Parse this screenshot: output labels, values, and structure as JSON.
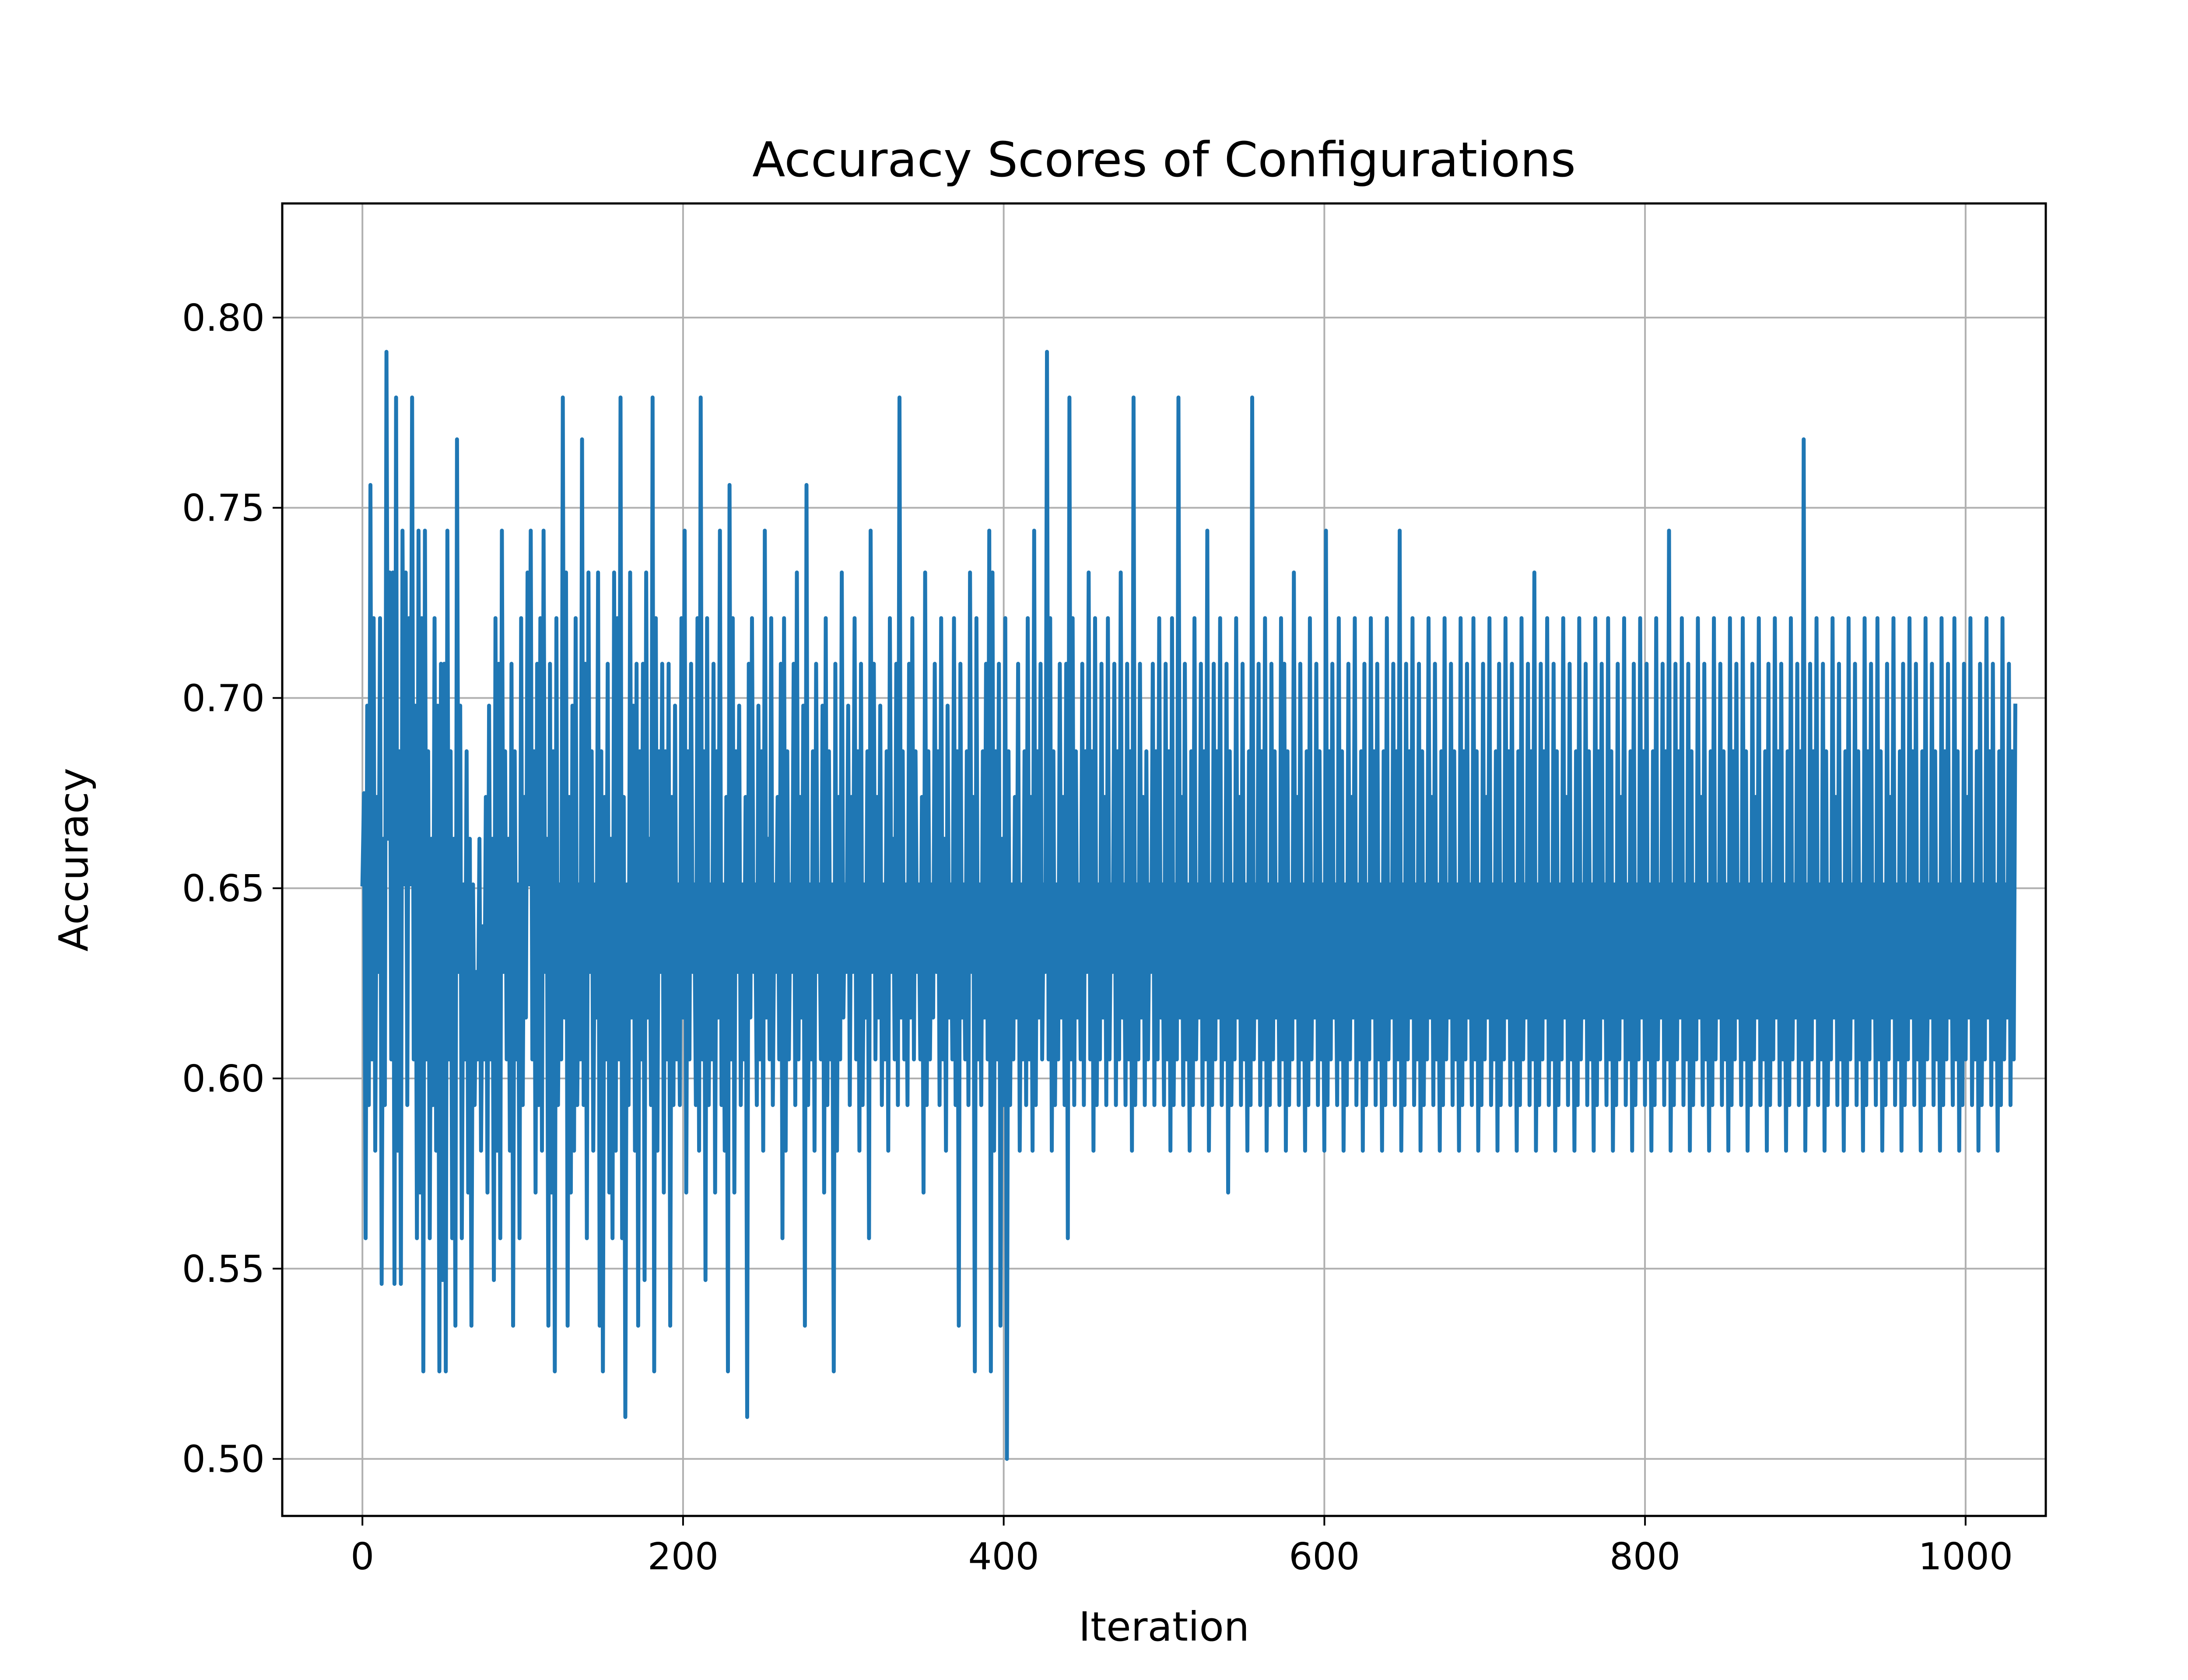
{
  "chart_data": {
    "type": "line",
    "title": "Accuracy Scores of Configurations",
    "xlabel": "Iteration",
    "ylabel": "Accuracy",
    "xlim": [
      -50,
      1050
    ],
    "ylim": [
      0.485,
      0.83
    ],
    "xticks": [
      0,
      200,
      400,
      600,
      800,
      1000
    ],
    "xtick_labels": [
      "0",
      "200",
      "400",
      "600",
      "800",
      "1000"
    ],
    "yticks": [
      0.5,
      0.55,
      0.6,
      0.65,
      0.7,
      0.75,
      0.8
    ],
    "ytick_labels": [
      "0.50",
      "0.55",
      "0.60",
      "0.65",
      "0.70",
      "0.75",
      "0.80"
    ],
    "grid": true,
    "legend": "none",
    "series": [
      {
        "color": "#1f77b4",
        "values_start_x": 0,
        "values_step_x": 1,
        "values": [
          0.651,
          0.675,
          0.558,
          0.698,
          0.593,
          0.756,
          0.605,
          0.721,
          0.581,
          0.674,
          0.628,
          0.721,
          0.546,
          0.663,
          0.593,
          0.791,
          0.663,
          0.733,
          0.605,
          0.733,
          0.546,
          0.779,
          0.581,
          0.686,
          0.546,
          0.744,
          0.651,
          0.733,
          0.593,
          0.721,
          0.651,
          0.779,
          0.605,
          0.698,
          0.558,
          0.744,
          0.57,
          0.721,
          0.523,
          0.744,
          0.605,
          0.686,
          0.558,
          0.663,
          0.593,
          0.721,
          0.581,
          0.698,
          0.523,
          0.709,
          0.547,
          0.709,
          0.523,
          0.744,
          0.605,
          0.686,
          0.558,
          0.663,
          0.535,
          0.768,
          0.628,
          0.698,
          0.558,
          0.651,
          0.605,
          0.686,
          0.57,
          0.663,
          0.535,
          0.651,
          0.593,
          0.628,
          0.605,
          0.663,
          0.581,
          0.64,
          0.605,
          0.674,
          0.57,
          0.698,
          0.605,
          0.663,
          0.547,
          0.721,
          0.581,
          0.709,
          0.558,
          0.744,
          0.628,
          0.686,
          0.605,
          0.663,
          0.581,
          0.709,
          0.535,
          0.686,
          0.605,
          0.651,
          0.558,
          0.721,
          0.593,
          0.674,
          0.616,
          0.733,
          0.651,
          0.744,
          0.605,
          0.686,
          0.57,
          0.709,
          0.593,
          0.721,
          0.581,
          0.744,
          0.628,
          0.663,
          0.535,
          0.709,
          0.57,
          0.686,
          0.523,
          0.721,
          0.593,
          0.651,
          0.605,
          0.779,
          0.616,
          0.733,
          0.535,
          0.674,
          0.57,
          0.698,
          0.581,
          0.721,
          0.593,
          0.651,
          0.605,
          0.768,
          0.593,
          0.709,
          0.558,
          0.733,
          0.628,
          0.686,
          0.581,
          0.651,
          0.616,
          0.733,
          0.535,
          0.686,
          0.523,
          0.674,
          0.605,
          0.709,
          0.57,
          0.663,
          0.558,
          0.733,
          0.581,
          0.721,
          0.605,
          0.779,
          0.558,
          0.674,
          0.511,
          0.651,
          0.593,
          0.733,
          0.616,
          0.698,
          0.581,
          0.709,
          0.535,
          0.686,
          0.605,
          0.709,
          0.547,
          0.733,
          0.616,
          0.663,
          0.593,
          0.779,
          0.523,
          0.721,
          0.581,
          0.686,
          0.628,
          0.709,
          0.57,
          0.686,
          0.605,
          0.709,
          0.535,
          0.674,
          0.593,
          0.698,
          0.605,
          0.651,
          0.593,
          0.721,
          0.616,
          0.744,
          0.57,
          0.686,
          0.605,
          0.709,
          0.628,
          0.651,
          0.593,
          0.721,
          0.581,
          0.779,
          0.605,
          0.686,
          0.547,
          0.721,
          0.593,
          0.651,
          0.605,
          0.709,
          0.57,
          0.686,
          0.616,
          0.744,
          0.593,
          0.651,
          0.581,
          0.674,
          0.523,
          0.756,
          0.605,
          0.721,
          0.57,
          0.686,
          0.628,
          0.698,
          0.593,
          0.651,
          0.605,
          0.674,
          0.511,
          0.709,
          0.616,
          0.721,
          0.628,
          0.651,
          0.593,
          0.698,
          0.605,
          0.686,
          0.581,
          0.744,
          0.616,
          0.663,
          0.605,
          0.721,
          0.593,
          0.651,
          0.628,
          0.674,
          0.605,
          0.709,
          0.558,
          0.721,
          0.581,
          0.686,
          0.605,
          0.651,
          0.628,
          0.709,
          0.593,
          0.733,
          0.605,
          0.674,
          0.616,
          0.698,
          0.535,
          0.756,
          0.593,
          0.651,
          0.605,
          0.686,
          0.581,
          0.709,
          0.628,
          0.651,
          0.605,
          0.698,
          0.57,
          0.721,
          0.593,
          0.686,
          0.605,
          0.651,
          0.523,
          0.709,
          0.581,
          0.674,
          0.605,
          0.733,
          0.616,
          0.651,
          0.628,
          0.698,
          0.593,
          0.674,
          0.628,
          0.721,
          0.605,
          0.686,
          0.581,
          0.709,
          0.593,
          0.651,
          0.616,
          0.686,
          0.558,
          0.744,
          0.628,
          0.709,
          0.605,
          0.674,
          0.616,
          0.698,
          0.593,
          0.651,
          0.605,
          0.686,
          0.581,
          0.721,
          0.628,
          0.663,
          0.605,
          0.709,
          0.593,
          0.779,
          0.616,
          0.686,
          0.605,
          0.651,
          0.593,
          0.709,
          0.616,
          0.721,
          0.605,
          0.686,
          0.628,
          0.651,
          0.605,
          0.674,
          0.57,
          0.733,
          0.593,
          0.686,
          0.605,
          0.651,
          0.616,
          0.709,
          0.628,
          0.686,
          0.593,
          0.721,
          0.605,
          0.663,
          0.581,
          0.698,
          0.616,
          0.651,
          0.605,
          0.721,
          0.593,
          0.686,
          0.535,
          0.709,
          0.616,
          0.651,
          0.605,
          0.686,
          0.593,
          0.733,
          0.628,
          0.674,
          0.523,
          0.721,
          0.605,
          0.651,
          0.593,
          0.686,
          0.616,
          0.709,
          0.605,
          0.744,
          0.523,
          0.733,
          0.581,
          0.686,
          0.605,
          0.709,
          0.535,
          0.663,
          0.593,
          0.721,
          0.5,
          0.686,
          0.593,
          0.651,
          0.605,
          0.674,
          0.616,
          0.709,
          0.581,
          0.651,
          0.605,
          0.686,
          0.593,
          0.721,
          0.605,
          0.674,
          0.581,
          0.744,
          0.593,
          0.686,
          0.616,
          0.709,
          0.605,
          0.651,
          0.628,
          0.791,
          0.605,
          0.721,
          0.581,
          0.686,
          0.593,
          0.651,
          0.605,
          0.709,
          0.616,
          0.674,
          0.593,
          0.709,
          0.558,
          0.779,
          0.605,
          0.721,
          0.593,
          0.686,
          0.616,
          0.651,
          0.605,
          0.709,
          0.593,
          0.686,
          0.628,
          0.733,
          0.605,
          0.686,
          0.581,
          0.721,
          0.593,
          0.651,
          0.605,
          0.709,
          0.616,
          0.674,
          0.593,
          0.721,
          0.605,
          0.651,
          0.628,
          0.709,
          0.593,
          0.686,
          0.605,
          0.733,
          0.616,
          0.651,
          0.593,
          0.709,
          0.605,
          0.686,
          0.581,
          0.779,
          0.593,
          0.651,
          0.605,
          0.709,
          0.616,
          0.674,
          0.593,
          0.686,
          0.605,
          0.651,
          0.628,
          0.709,
          0.593,
          0.686,
          0.605,
          0.721,
          0.616,
          0.651,
          0.593,
          0.709,
          0.605,
          0.686,
          0.581,
          0.721,
          0.593,
          0.651,
          0.605,
          0.779,
          0.616,
          0.674,
          0.593,
          0.709,
          0.605,
          0.651,
          0.581,
          0.686,
          0.593,
          0.721,
          0.605,
          0.651,
          0.616,
          0.709,
          0.593,
          0.686,
          0.605,
          0.744,
          0.581,
          0.651,
          0.593,
          0.709,
          0.605,
          0.686,
          0.616,
          0.721,
          0.593,
          0.651,
          0.605,
          0.709,
          0.57,
          0.686,
          0.593,
          0.651,
          0.605,
          0.721,
          0.616,
          0.674,
          0.593,
          0.709,
          0.605,
          0.651,
          0.581,
          0.686,
          0.593,
          0.779,
          0.605,
          0.651,
          0.616,
          0.709,
          0.593,
          0.686,
          0.605,
          0.721,
          0.581,
          0.651,
          0.593,
          0.709,
          0.605,
          0.686,
          0.616,
          0.651,
          0.593,
          0.721,
          0.605,
          0.709,
          0.581,
          0.686,
          0.593,
          0.651,
          0.605,
          0.733,
          0.616,
          0.674,
          0.593,
          0.709,
          0.605,
          0.651,
          0.581,
          0.686,
          0.593,
          0.721,
          0.605,
          0.651,
          0.616,
          0.709,
          0.593,
          0.686,
          0.605,
          0.651,
          0.581,
          0.744,
          0.593,
          0.686,
          0.605,
          0.709,
          0.616,
          0.651,
          0.593,
          0.721,
          0.605,
          0.686,
          0.581,
          0.651,
          0.593,
          0.709,
          0.605,
          0.674,
          0.616,
          0.721,
          0.593,
          0.651,
          0.605,
          0.686,
          0.581,
          0.709,
          0.593,
          0.651,
          0.605,
          0.721,
          0.616,
          0.686,
          0.593,
          0.709,
          0.605,
          0.651,
          0.581,
          0.686,
          0.593,
          0.721,
          0.605,
          0.651,
          0.616,
          0.709,
          0.593,
          0.686,
          0.605,
          0.744,
          0.581,
          0.651,
          0.593,
          0.709,
          0.605,
          0.686,
          0.616,
          0.721,
          0.593,
          0.651,
          0.605,
          0.709,
          0.581,
          0.686,
          0.593,
          0.651,
          0.605,
          0.721,
          0.616,
          0.674,
          0.593,
          0.709,
          0.605,
          0.651,
          0.581,
          0.686,
          0.593,
          0.721,
          0.605,
          0.651,
          0.616,
          0.709,
          0.593,
          0.686,
          0.605,
          0.651,
          0.581,
          0.721,
          0.593,
          0.686,
          0.605,
          0.709,
          0.616,
          0.651,
          0.593,
          0.721,
          0.605,
          0.686,
          0.581,
          0.651,
          0.593,
          0.709,
          0.605,
          0.674,
          0.616,
          0.721,
          0.593,
          0.651,
          0.605,
          0.686,
          0.581,
          0.709,
          0.593,
          0.651,
          0.605,
          0.721,
          0.616,
          0.686,
          0.593,
          0.709,
          0.605,
          0.651,
          0.581,
          0.686,
          0.593,
          0.721,
          0.605,
          0.651,
          0.616,
          0.709,
          0.593,
          0.686,
          0.605,
          0.733,
          0.581,
          0.651,
          0.593,
          0.709,
          0.605,
          0.686,
          0.616,
          0.721,
          0.593,
          0.651,
          0.605,
          0.709,
          0.581,
          0.686,
          0.593,
          0.651,
          0.605,
          0.721,
          0.616,
          0.674,
          0.593,
          0.709,
          0.605,
          0.651,
          0.581,
          0.686,
          0.593,
          0.721,
          0.605,
          0.651,
          0.616,
          0.709,
          0.593,
          0.686,
          0.605,
          0.651,
          0.581,
          0.721,
          0.593,
          0.686,
          0.605,
          0.709,
          0.616,
          0.651,
          0.593,
          0.721,
          0.605,
          0.686,
          0.581,
          0.651,
          0.593,
          0.709,
          0.605,
          0.674,
          0.616,
          0.721,
          0.593,
          0.651,
          0.605,
          0.686,
          0.581,
          0.709,
          0.593,
          0.651,
          0.605,
          0.721,
          0.616,
          0.686,
          0.593,
          0.709,
          0.605,
          0.651,
          0.581,
          0.686,
          0.593,
          0.721,
          0.605,
          0.651,
          0.616,
          0.709,
          0.593,
          0.686,
          0.605,
          0.744,
          0.581,
          0.651,
          0.593,
          0.709,
          0.605,
          0.686,
          0.616,
          0.721,
          0.593,
          0.651,
          0.605,
          0.709,
          0.581,
          0.686,
          0.593,
          0.651,
          0.605,
          0.721,
          0.616,
          0.674,
          0.593,
          0.709,
          0.605,
          0.651,
          0.581,
          0.686,
          0.593,
          0.721,
          0.605,
          0.651,
          0.616,
          0.709,
          0.593,
          0.686,
          0.605,
          0.651,
          0.581,
          0.721,
          0.593,
          0.686,
          0.605,
          0.709,
          0.616,
          0.651,
          0.593,
          0.721,
          0.605,
          0.686,
          0.581,
          0.651,
          0.593,
          0.709,
          0.605,
          0.674,
          0.616,
          0.721,
          0.593,
          0.651,
          0.605,
          0.686,
          0.581,
          0.709,
          0.593,
          0.651,
          0.605,
          0.721,
          0.616,
          0.686,
          0.593,
          0.709,
          0.605,
          0.651,
          0.581,
          0.686,
          0.593,
          0.721,
          0.605,
          0.651,
          0.616,
          0.709,
          0.593,
          0.686,
          0.605,
          0.768,
          0.581,
          0.651,
          0.593,
          0.709,
          0.605,
          0.686,
          0.616,
          0.721,
          0.593,
          0.651,
          0.605,
          0.709,
          0.581,
          0.686,
          0.593,
          0.651,
          0.605,
          0.721,
          0.616,
          0.674,
          0.593,
          0.709,
          0.605,
          0.651,
          0.581,
          0.686,
          0.593,
          0.721,
          0.605,
          0.651,
          0.616,
          0.709,
          0.593,
          0.686,
          0.605,
          0.651,
          0.581,
          0.721,
          0.593,
          0.686,
          0.605,
          0.709,
          0.616,
          0.651,
          0.593,
          0.721,
          0.605,
          0.686,
          0.581,
          0.651,
          0.593,
          0.709,
          0.605,
          0.674,
          0.616,
          0.721,
          0.593,
          0.651,
          0.605,
          0.686,
          0.581,
          0.709,
          0.593,
          0.651,
          0.605,
          0.721,
          0.616,
          0.686,
          0.593,
          0.709,
          0.605,
          0.651,
          0.581,
          0.686,
          0.593,
          0.721,
          0.605,
          0.651,
          0.616,
          0.709,
          0.593,
          0.686,
          0.605,
          0.651,
          0.581,
          0.721,
          0.593,
          0.686,
          0.605,
          0.709,
          0.616,
          0.651,
          0.593,
          0.721,
          0.605,
          0.686,
          0.581,
          0.651,
          0.593,
          0.709,
          0.605,
          0.674,
          0.616,
          0.721,
          0.593,
          0.651,
          0.605,
          0.686,
          0.581,
          0.709,
          0.593,
          0.651,
          0.605,
          0.721,
          0.616,
          0.686,
          0.593,
          0.709,
          0.605,
          0.651,
          0.581,
          0.686,
          0.593,
          0.721,
          0.605,
          0.651,
          0.616,
          0.709,
          0.593,
          0.686,
          0.605,
          0.698
        ]
      }
    ]
  }
}
